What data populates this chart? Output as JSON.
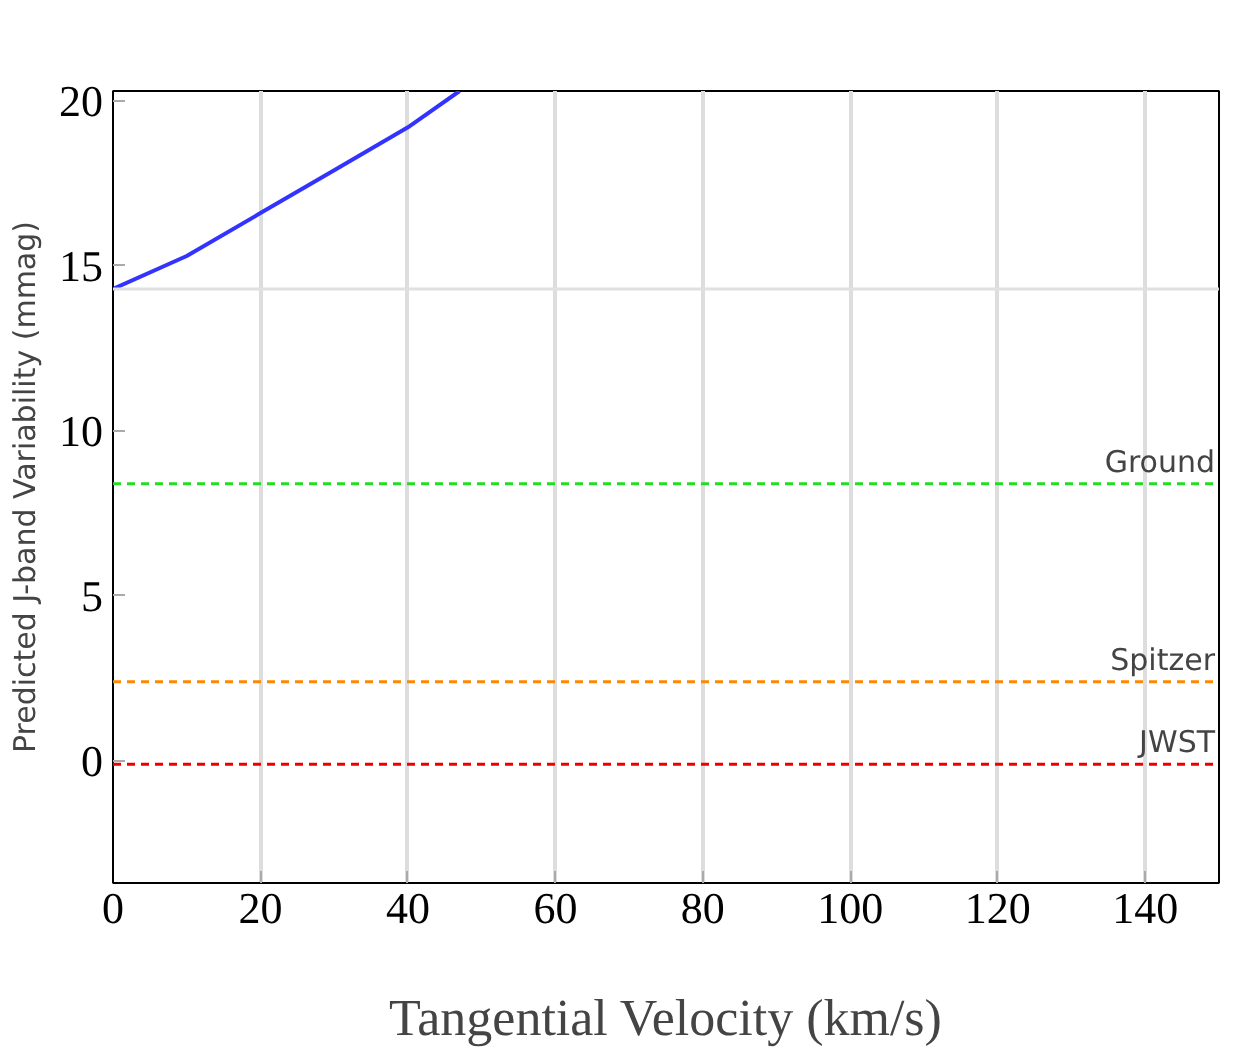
{
  "chart_data": {
    "type": "line",
    "xlabel": "Tangential Velocity (km/s)",
    "ylabel": "Predicted J-band Variability (mmag)",
    "xlim": [
      0,
      150
    ],
    "ylim": [
      -3.7,
      20.3
    ],
    "xticks": [
      0,
      20,
      40,
      60,
      80,
      100,
      120,
      140
    ],
    "yticks": [
      0,
      5,
      10,
      15,
      20
    ],
    "grid": "x",
    "line_style": "solid",
    "series": [
      {
        "color": "#3333ff",
        "x": [
          0,
          10,
          20,
          30,
          40,
          47
        ],
        "values": [
          14.3,
          15.3,
          16.6,
          17.9,
          19.2,
          20.3
        ]
      }
    ],
    "ref_lines": [
      {
        "axis": "y",
        "value": 14.3,
        "color": "#e0e0e0",
        "line_style": "solid"
      },
      {
        "axis": "y",
        "value": 8.4,
        "label": "Ground",
        "color": "#22dd22",
        "line_style": "dashed"
      },
      {
        "axis": "y",
        "value": 2.4,
        "label": "Spitzer",
        "color": "#ff8800",
        "line_style": "dashed"
      },
      {
        "axis": "y",
        "value": -0.1,
        "label": "JWST",
        "color": "#ee0000",
        "line_style": "dashed"
      }
    ]
  }
}
